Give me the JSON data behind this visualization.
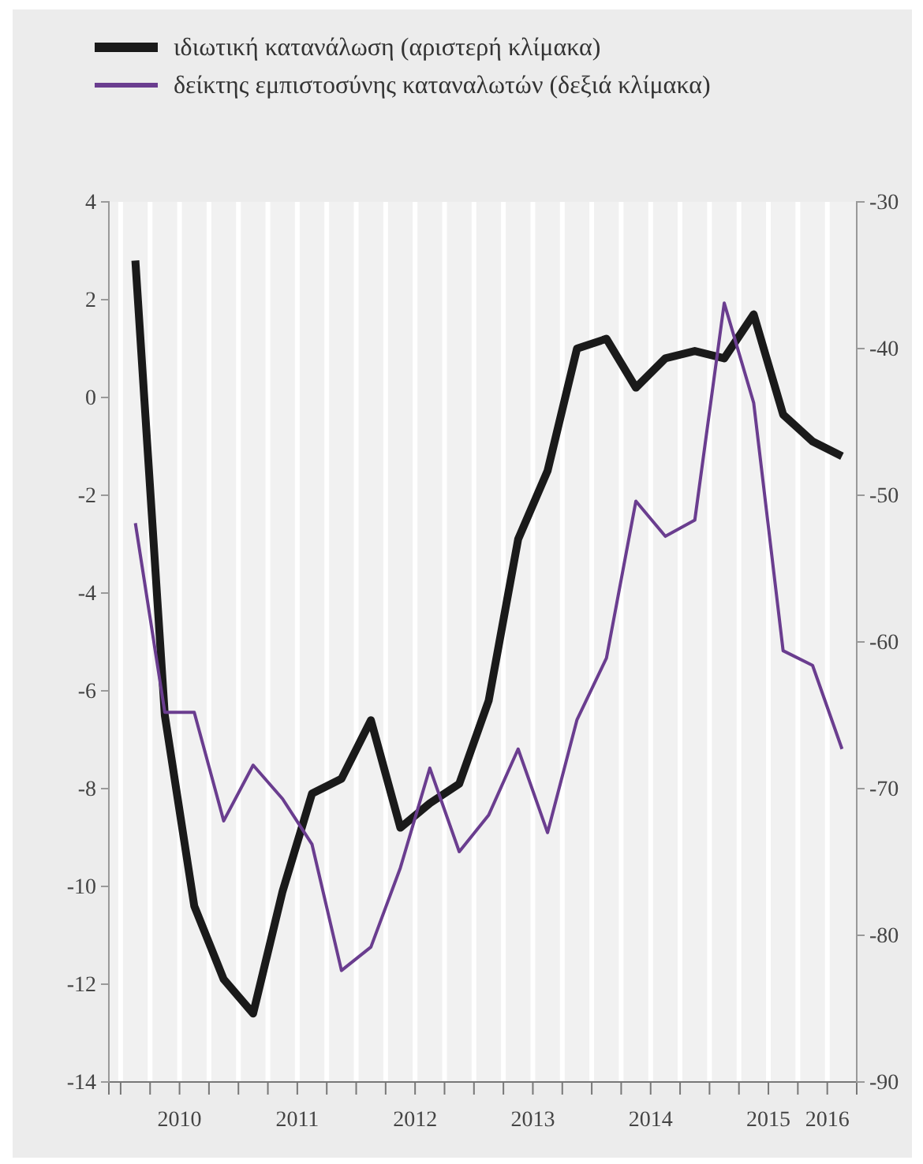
{
  "chart_data": {
    "type": "line",
    "x": [
      2010.125,
      2010.375,
      2010.625,
      2010.875,
      2011.125,
      2011.375,
      2011.625,
      2011.875,
      2012.125,
      2012.375,
      2012.625,
      2012.875,
      2013.125,
      2013.375,
      2013.625,
      2013.875,
      2014.125,
      2014.375,
      2014.625,
      2014.875,
      2015.125,
      2015.375,
      2015.625,
      2015.875,
      2016.125
    ],
    "series": [
      {
        "name": "ιδιωτική κατανάλωση (αριστερή κλίμακα)",
        "color": "#1a1a1a",
        "values": [
          2.8,
          -6.5,
          -10.4,
          -11.9,
          -12.6,
          -10.1,
          -8.1,
          -7.8,
          -6.6,
          -8.8,
          -8.3,
          -7.9,
          -6.2,
          -2.9,
          -1.5,
          1.0,
          1.2,
          0.2,
          0.8,
          0.95,
          0.8,
          1.7,
          -0.35,
          -0.9,
          -1.2
        ]
      },
      {
        "name": "δείκτης εμπιστοσύνης καταναλωτών (δεξιά κλίμακα)",
        "color": "#6a3d8f",
        "axis": "y2",
        "values": [
          -51.9,
          -64.8,
          -64.8,
          -72.2,
          -68.4,
          -70.7,
          -73.8,
          -82.4,
          -80.8,
          -75.4,
          -68.6,
          -74.3,
          -71.8,
          -67.3,
          -73.0,
          -65.3,
          -61.1,
          -50.4,
          -52.8,
          -51.7,
          -36.9,
          -43.7,
          -60.6,
          -61.6,
          -67.3
        ]
      }
    ],
    "xlim": [
      2009.9,
      2016.25
    ],
    "xticks": [
      {
        "value": 2010,
        "label": null
      },
      {
        "value": 2010.25,
        "label": null
      },
      {
        "value": 2010.5,
        "label": "2010"
      },
      {
        "value": 2010.75,
        "label": null
      },
      {
        "value": 2011,
        "label": null
      },
      {
        "value": 2011.25,
        "label": null
      },
      {
        "value": 2011.5,
        "label": "2011"
      },
      {
        "value": 2011.75,
        "label": null
      },
      {
        "value": 2012,
        "label": null
      },
      {
        "value": 2012.25,
        "label": null
      },
      {
        "value": 2012.5,
        "label": "2012"
      },
      {
        "value": 2012.75,
        "label": null
      },
      {
        "value": 2013,
        "label": null
      },
      {
        "value": 2013.25,
        "label": null
      },
      {
        "value": 2013.5,
        "label": "2013"
      },
      {
        "value": 2013.75,
        "label": null
      },
      {
        "value": 2014,
        "label": null
      },
      {
        "value": 2014.25,
        "label": null
      },
      {
        "value": 2014.5,
        "label": "2014"
      },
      {
        "value": 2014.75,
        "label": null
      },
      {
        "value": 2015,
        "label": null
      },
      {
        "value": 2015.25,
        "label": null
      },
      {
        "value": 2015.5,
        "label": "2015"
      },
      {
        "value": 2015.75,
        "label": null
      },
      {
        "value": 2016.0,
        "label": "2016"
      }
    ],
    "ylim": [
      -14,
      4
    ],
    "yticks": [
      -14,
      -12,
      -10,
      -8,
      -6,
      -4,
      -2,
      0,
      2,
      4
    ],
    "y2lim": [
      -90,
      -30
    ],
    "y2ticks": [
      -90,
      -80,
      -70,
      -60,
      -50,
      -40,
      -30
    ],
    "grid": "x",
    "legend": "top",
    "line_style": "solid",
    "marker": "none"
  }
}
